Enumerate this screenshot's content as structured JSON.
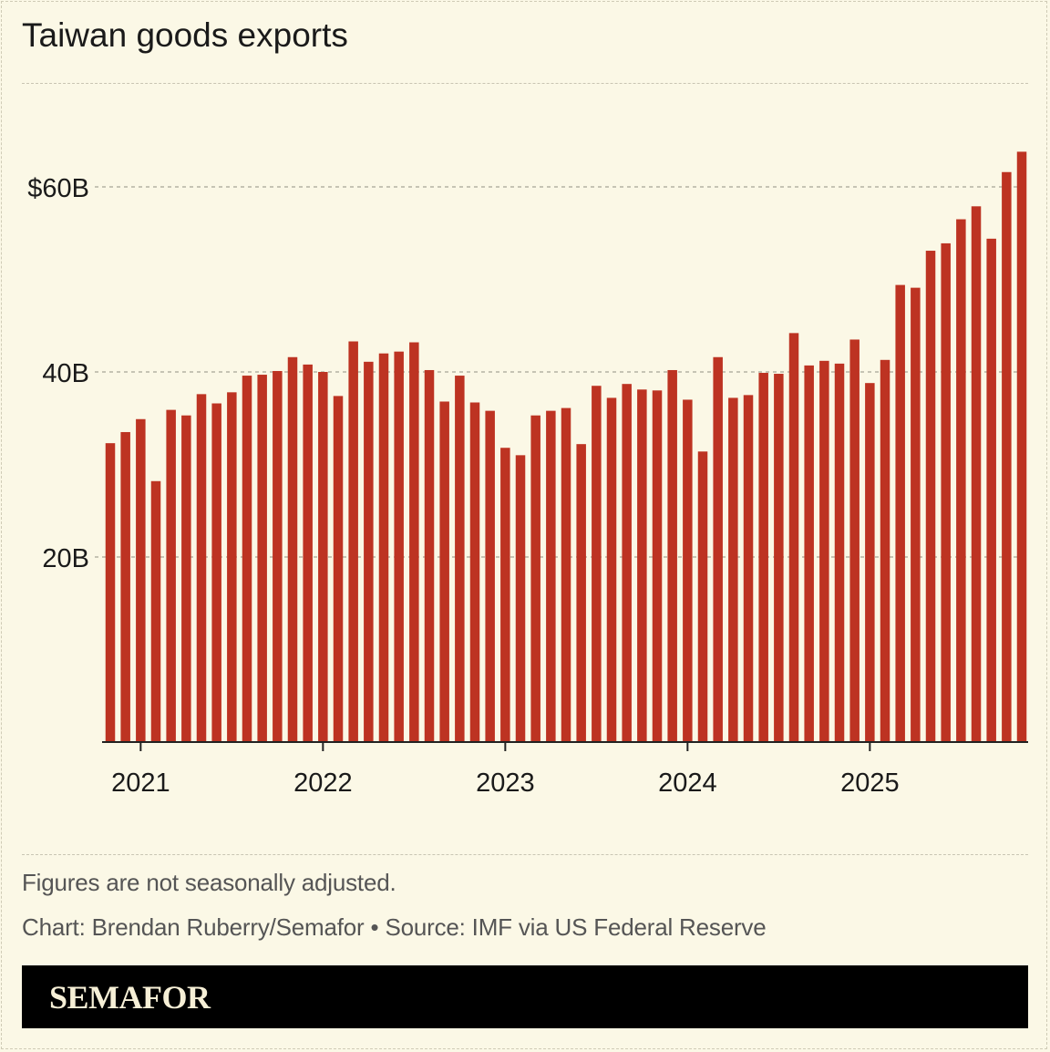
{
  "title": "Taiwan goods exports",
  "footnote": "Figures are not seasonally adjusted.",
  "credit": "Chart: Brendan Ruberry/Semafor • Source: IMF via US Federal Reserve",
  "brand": "SEMAFOR",
  "colors": {
    "bar": "#bd3322",
    "background": "#fbf8e6",
    "grid": "#b5b2a3"
  },
  "chart_data": {
    "type": "bar",
    "title": "Taiwan goods exports",
    "x_start": "2020-11",
    "x_end": "2025-11",
    "frequency": "monthly",
    "x_tick_labels": [
      "2021",
      "2022",
      "2023",
      "2024",
      "2025"
    ],
    "y_tick_labels": [
      "20B",
      "40B",
      "$60B"
    ],
    "y_ticks": [
      20,
      40,
      60
    ],
    "ylim": [
      0,
      66
    ],
    "unit": "billions USD",
    "grid": "horizontal dashed",
    "values": [
      32.3,
      33.5,
      34.9,
      28.2,
      35.9,
      35.3,
      37.6,
      36.6,
      37.8,
      39.6,
      39.7,
      40.1,
      41.6,
      40.8,
      40.0,
      37.4,
      43.3,
      41.1,
      42.0,
      42.2,
      43.2,
      40.2,
      36.8,
      39.6,
      36.7,
      35.8,
      31.8,
      31.0,
      35.3,
      35.8,
      36.1,
      32.2,
      38.5,
      37.2,
      38.7,
      38.1,
      38.0,
      40.2,
      37.0,
      31.4,
      41.6,
      37.2,
      37.5,
      39.9,
      39.8,
      44.2,
      40.7,
      41.2,
      40.9,
      43.5,
      38.8,
      41.3,
      49.4,
      49.1,
      53.1,
      53.9,
      56.5,
      57.9,
      54.4,
      61.6,
      63.8
    ]
  }
}
